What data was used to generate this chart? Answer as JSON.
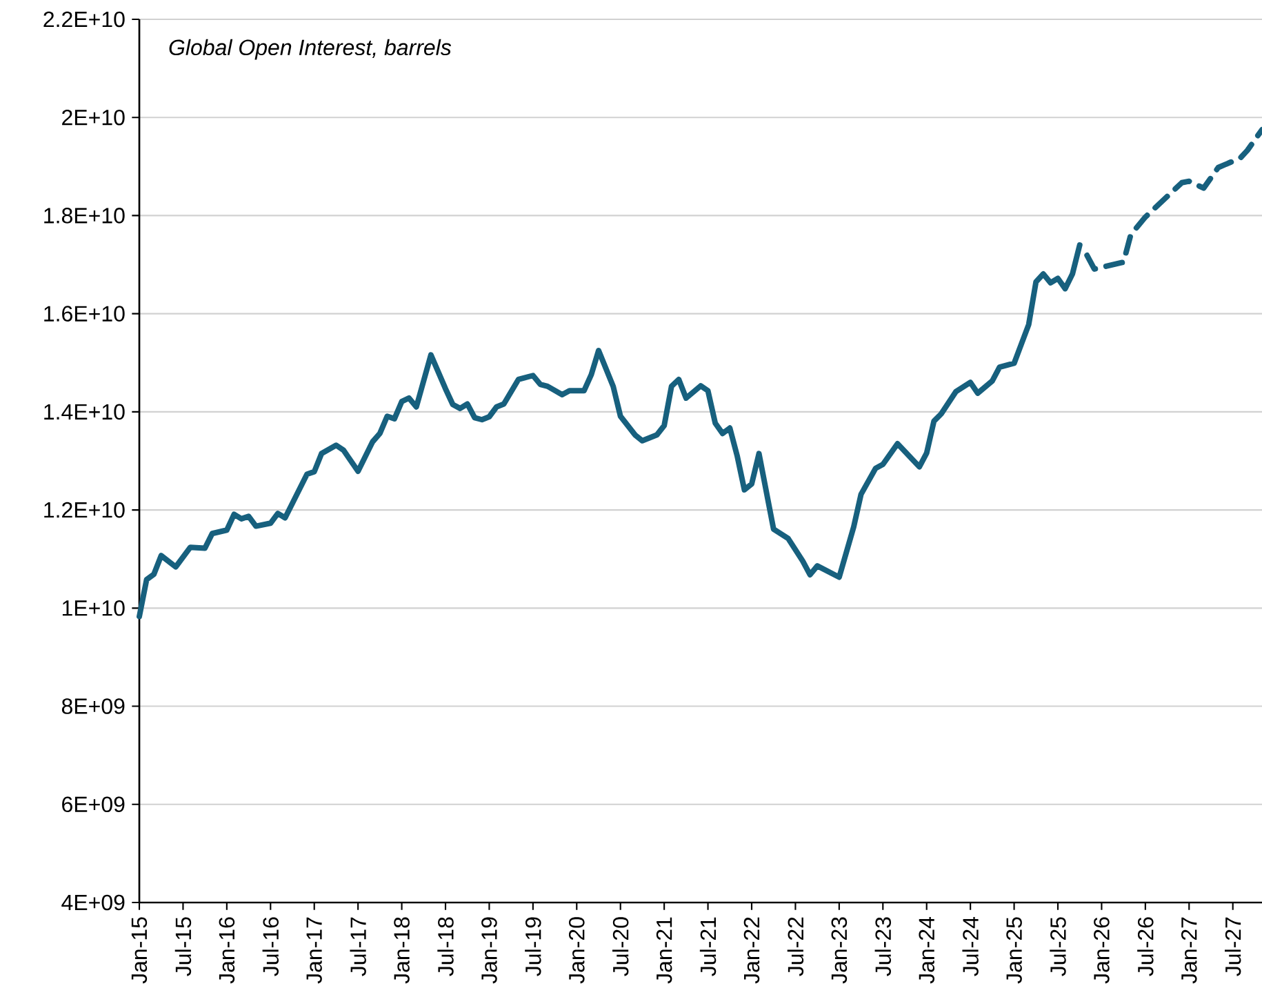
{
  "chart_data": {
    "type": "line",
    "title": "Global Open Interest, barrels",
    "xlim": [
      "2015-01",
      "2027-11"
    ],
    "ylim": [
      4000000000,
      22000000000
    ],
    "yticks": [
      {
        "value": 4000000000,
        "label": "4E+09"
      },
      {
        "value": 6000000000,
        "label": "6E+09"
      },
      {
        "value": 8000000000,
        "label": "8E+09"
      },
      {
        "value": 10000000000,
        "label": "1E+10"
      },
      {
        "value": 12000000000,
        "label": "1.2E+10"
      },
      {
        "value": 14000000000,
        "label": "1.4E+10"
      },
      {
        "value": 16000000000,
        "label": "1.6E+10"
      },
      {
        "value": 18000000000,
        "label": "1.8E+10"
      },
      {
        "value": 20000000000,
        "label": "2E+10"
      },
      {
        "value": 22000000000,
        "label": "2.2E+10"
      }
    ],
    "xticks": [
      {
        "value": "2015-01",
        "label": "Jan-15"
      },
      {
        "value": "2015-07",
        "label": "Jul-15"
      },
      {
        "value": "2016-01",
        "label": "Jan-16"
      },
      {
        "value": "2016-07",
        "label": "Jul-16"
      },
      {
        "value": "2017-01",
        "label": "Jan-17"
      },
      {
        "value": "2017-07",
        "label": "Jul-17"
      },
      {
        "value": "2018-01",
        "label": "Jan-18"
      },
      {
        "value": "2018-07",
        "label": "Jul-18"
      },
      {
        "value": "2019-01",
        "label": "Jan-19"
      },
      {
        "value": "2019-07",
        "label": "Jul-19"
      },
      {
        "value": "2020-01",
        "label": "Jan-20"
      },
      {
        "value": "2020-07",
        "label": "Jul-20"
      },
      {
        "value": "2021-01",
        "label": "Jan-21"
      },
      {
        "value": "2021-07",
        "label": "Jul-21"
      },
      {
        "value": "2022-01",
        "label": "Jan-22"
      },
      {
        "value": "2022-07",
        "label": "Jul-22"
      },
      {
        "value": "2023-01",
        "label": "Jan-23"
      },
      {
        "value": "2023-07",
        "label": "Jul-23"
      },
      {
        "value": "2024-01",
        "label": "Jan-24"
      },
      {
        "value": "2024-07",
        "label": "Jul-24"
      },
      {
        "value": "2025-01",
        "label": "Jan-25"
      },
      {
        "value": "2025-07",
        "label": "Jul-25"
      },
      {
        "value": "2026-01",
        "label": "Jan-26"
      },
      {
        "value": "2026-07",
        "label": "Jul-26"
      },
      {
        "value": "2027-01",
        "label": "Jan-27"
      },
      {
        "value": "2027-07",
        "label": "Jul-27"
      }
    ],
    "grid": "y",
    "marker": "none",
    "series": [
      {
        "color": "#17607e",
        "line_style": "solid",
        "x": [
          "2015-01",
          "2015-02",
          "2015-03",
          "2015-04",
          "2015-06",
          "2015-08",
          "2015-10",
          "2015-11",
          "2016-01",
          "2016-02",
          "2016-03",
          "2016-04",
          "2016-05",
          "2016-07",
          "2016-08",
          "2016-09",
          "2016-12",
          "2017-01",
          "2017-02",
          "2017-04",
          "2017-05",
          "2017-07",
          "2017-09",
          "2017-10",
          "2017-11",
          "2017-12",
          "2018-01",
          "2018-02",
          "2018-03",
          "2018-05",
          "2018-07",
          "2018-08",
          "2018-09",
          "2018-10",
          "2018-11",
          "2018-12",
          "2019-01",
          "2019-02",
          "2019-03",
          "2019-05",
          "2019-07",
          "2019-08",
          "2019-09",
          "2019-11",
          "2019-12",
          "2020-02",
          "2020-03",
          "2020-04",
          "2020-06",
          "2020-07",
          "2020-09",
          "2020-10",
          "2020-12",
          "2021-01",
          "2021-02",
          "2021-03",
          "2021-04",
          "2021-06",
          "2021-07",
          "2021-08",
          "2021-09",
          "2021-10",
          "2021-11",
          "2021-12",
          "2022-01",
          "2022-02",
          "2022-04",
          "2022-06",
          "2022-08",
          "2022-09",
          "2022-10",
          "2023-01",
          "2023-03",
          "2023-04",
          "2023-06",
          "2023-07",
          "2023-09",
          "2023-12",
          "2024-01",
          "2024-02",
          "2024-03",
          "2024-05",
          "2024-07",
          "2024-08",
          "2024-10",
          "2024-11",
          "2025-01",
          "2025-03",
          "2025-04",
          "2025-05",
          "2025-06",
          "2025-07",
          "2025-08",
          "2025-09",
          "2025-10"
        ],
        "values": [
          9830000000,
          10580000000,
          10690000000,
          11070000000,
          10840000000,
          11240000000,
          11220000000,
          11520000000,
          11590000000,
          11910000000,
          11820000000,
          11870000000,
          11670000000,
          11730000000,
          11930000000,
          11840000000,
          12730000000,
          12780000000,
          13150000000,
          13320000000,
          13220000000,
          12790000000,
          13390000000,
          13560000000,
          13910000000,
          13860000000,
          14210000000,
          14280000000,
          14100000000,
          15160000000,
          14470000000,
          14150000000,
          14070000000,
          14160000000,
          13880000000,
          13840000000,
          13900000000,
          14100000000,
          14160000000,
          14660000000,
          14740000000,
          14560000000,
          14520000000,
          14350000000,
          14430000000,
          14430000000,
          14760000000,
          15250000000,
          14520000000,
          13910000000,
          13530000000,
          13410000000,
          13530000000,
          13720000000,
          14520000000,
          14660000000,
          14280000000,
          14530000000,
          14430000000,
          13770000000,
          13560000000,
          13670000000,
          13110000000,
          12410000000,
          12530000000,
          13150000000,
          11610000000,
          11420000000,
          10960000000,
          10680000000,
          10860000000,
          10630000000,
          11660000000,
          12320000000,
          12850000000,
          12930000000,
          13350000000,
          12880000000,
          13160000000,
          13810000000,
          13960000000,
          14410000000,
          14600000000,
          14380000000,
          14630000000,
          14910000000,
          14990000000,
          15780000000,
          16650000000,
          16810000000,
          16630000000,
          16720000000,
          16510000000,
          16810000000,
          17400000000
        ]
      },
      {
        "color": "#17607e",
        "line_style": "dashed",
        "x": [
          "2025-11",
          "2025-12",
          "2026-04",
          "2026-05",
          "2026-07",
          "2026-09",
          "2026-12",
          "2027-01",
          "2027-03",
          "2027-05",
          "2027-08",
          "2027-09",
          "2027-11"
        ],
        "values": [
          17190000000,
          16910000000,
          17050000000,
          17610000000,
          17970000000,
          18250000000,
          18670000000,
          18700000000,
          18560000000,
          18980000000,
          19170000000,
          19330000000,
          19750000000
        ]
      }
    ]
  }
}
